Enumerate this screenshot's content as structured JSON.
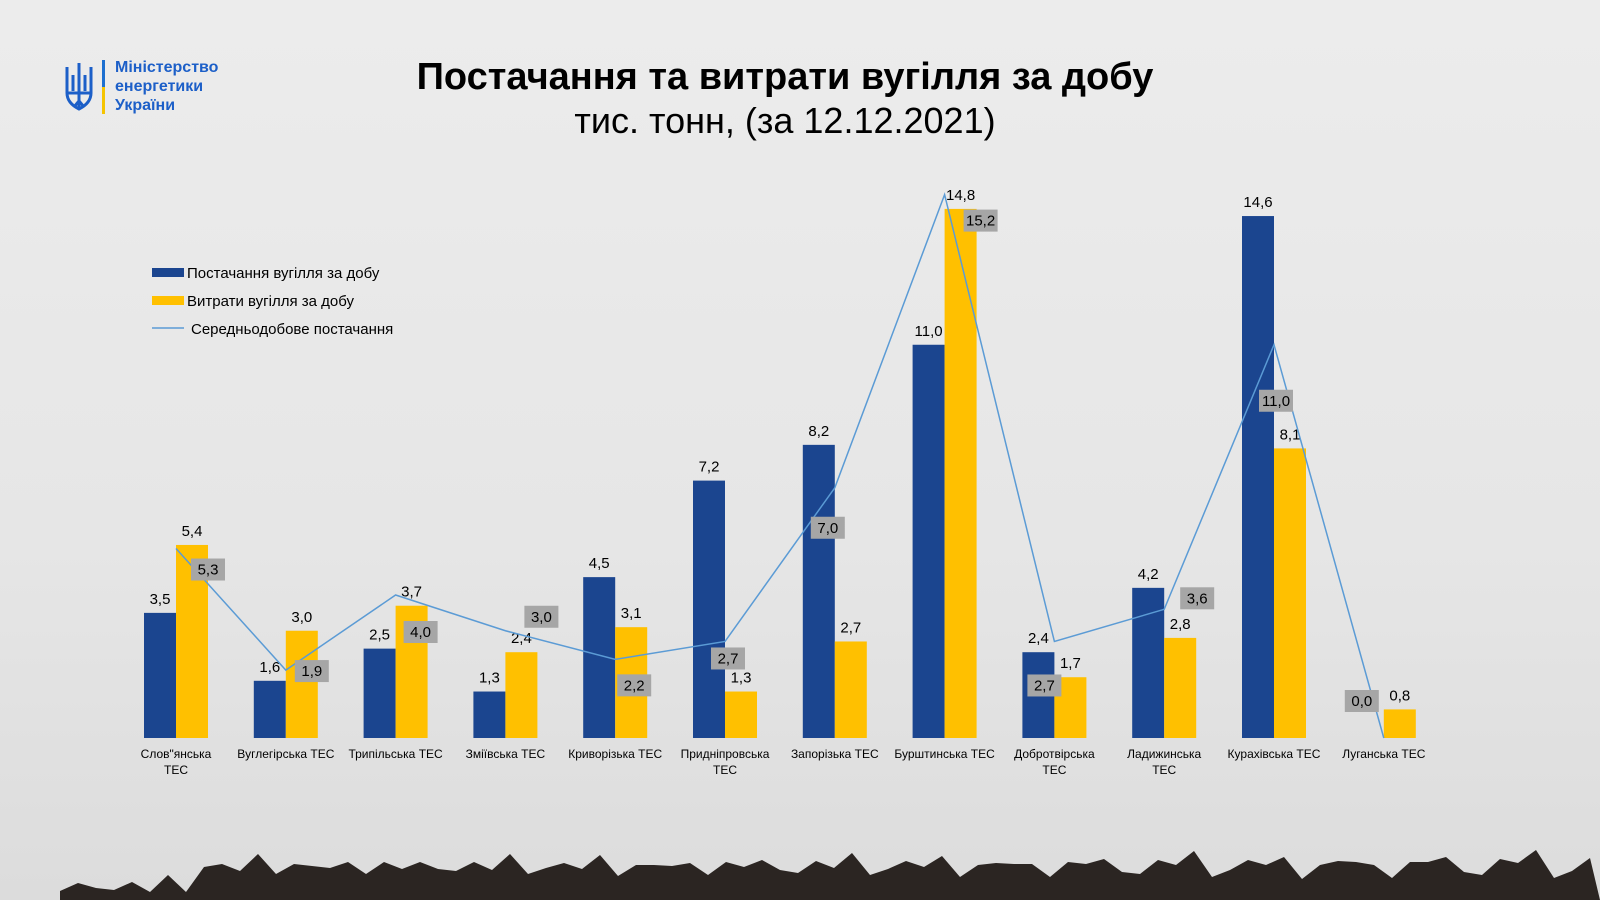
{
  "logo": {
    "lines": [
      "Міністерство",
      "енергетики",
      "України"
    ]
  },
  "chart_data": {
    "type": "bar",
    "title": "Постачання та витрати вугілля за добу",
    "subtitle": "тис. тонн, (за 12.12.2021)",
    "categories": [
      [
        "Слов\"янська",
        "ТЕС"
      ],
      [
        "Вуглегірська ТЕС"
      ],
      [
        "Трипільська ТЕС"
      ],
      [
        "Зміївська ТЕС"
      ],
      [
        "Криворізька ТЕС"
      ],
      [
        "Придніпровська",
        "ТЕС"
      ],
      [
        "Запорізька ТЕС"
      ],
      [
        "Бурштинська ТЕС"
      ],
      [
        "Добротвірська",
        "ТЕС"
      ],
      [
        "Ладижинська",
        "ТЕС"
      ],
      [
        "Курахівська ТЕС"
      ],
      [
        "Луганська ТЕС"
      ]
    ],
    "series": [
      {
        "name": "Постачання вугілля за добу",
        "type": "bar",
        "color": "#1b458f",
        "values": [
          3.5,
          1.6,
          2.5,
          1.3,
          4.5,
          7.2,
          8.2,
          11.0,
          2.4,
          4.2,
          14.6,
          null
        ]
      },
      {
        "name": "Витрати вугілля за добу",
        "type": "bar",
        "color": "#ffc000",
        "values": [
          5.4,
          3.0,
          3.7,
          2.4,
          3.1,
          1.3,
          2.7,
          14.8,
          1.7,
          2.8,
          8.1,
          0.8
        ]
      },
      {
        "name": "Середньодобове постачання",
        "type": "line",
        "color": "#5b9bd5",
        "values": [
          5.3,
          1.9,
          4.0,
          3.0,
          2.2,
          2.7,
          7.0,
          15.2,
          2.7,
          3.6,
          11.0,
          0.0
        ]
      }
    ],
    "legend": "top-left",
    "grid": false,
    "ylim": [
      0,
      16
    ]
  }
}
